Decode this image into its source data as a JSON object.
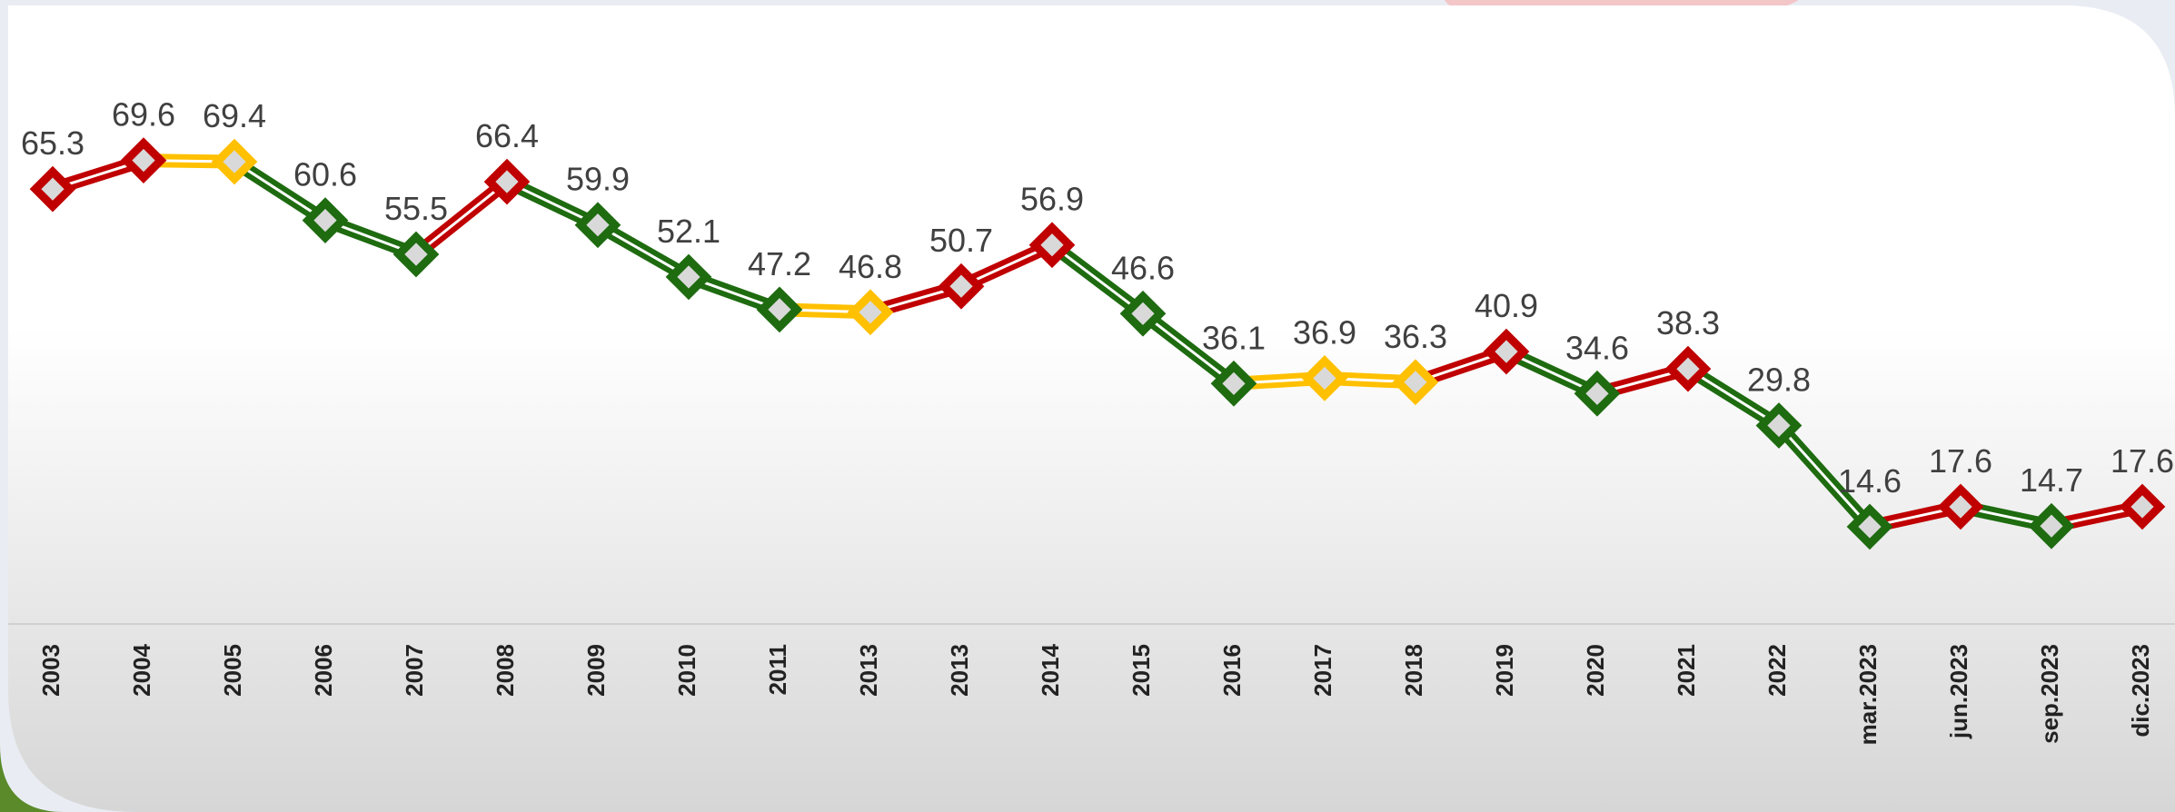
{
  "chart_data": {
    "type": "line",
    "categories": [
      "2003",
      "2004",
      "2005",
      "2006",
      "2007",
      "2008",
      "2009",
      "2010",
      "2011",
      "2013",
      "2013",
      "2014",
      "2015",
      "2016",
      "2017",
      "2018",
      "2019",
      "2020",
      "2021",
      "2022",
      "mar.2023",
      "jun.2023",
      "sep.2023",
      "dic.2023"
    ],
    "values": [
      65.3,
      69.6,
      69.4,
      60.6,
      55.5,
      66.4,
      59.9,
      52.1,
      47.2,
      46.8,
      50.7,
      56.9,
      46.6,
      36.1,
      36.9,
      36.3,
      40.9,
      34.6,
      38.3,
      29.8,
      14.6,
      17.6,
      14.7,
      17.6
    ],
    "point_colors": [
      "#c00000",
      "#c00000",
      "#ffc000",
      "#1e6b10",
      "#1e6b10",
      "#c00000",
      "#1e6b10",
      "#1e6b10",
      "#1e6b10",
      "#ffc000",
      "#c00000",
      "#c00000",
      "#1e6b10",
      "#1e6b10",
      "#ffc000",
      "#ffc000",
      "#c00000",
      "#1e6b10",
      "#c00000",
      "#1e6b10",
      "#1e6b10",
      "#c00000",
      "#1e6b10",
      "#c00000"
    ],
    "ylim": [
      0,
      90
    ]
  }
}
